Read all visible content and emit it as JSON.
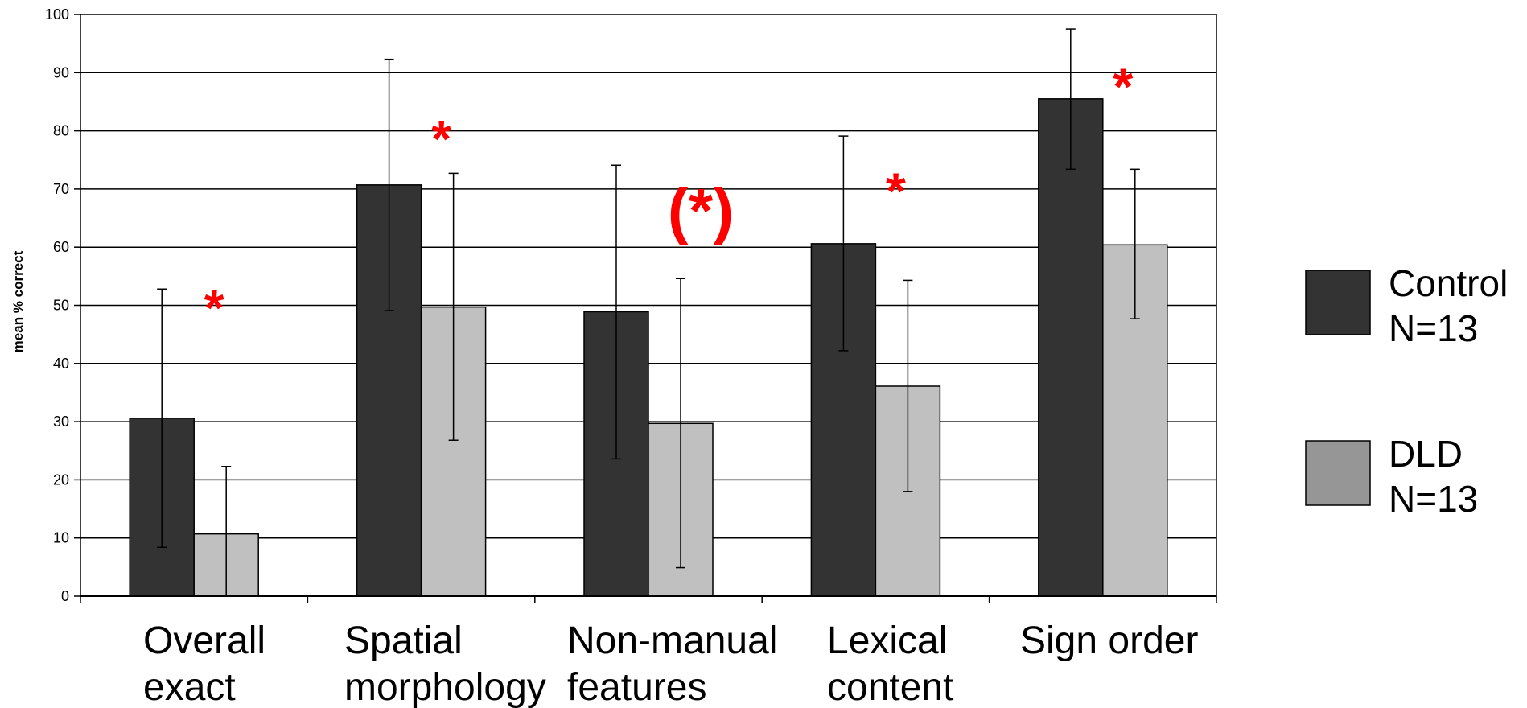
{
  "chart_data": {
    "type": "bar",
    "ylabel": "mean % correct",
    "xlabel": "",
    "ylim": [
      0,
      100
    ],
    "yticks": [
      "0",
      "10",
      "20",
      "30",
      "40",
      "50",
      "60",
      "70",
      "80",
      "90",
      "100"
    ],
    "grid": true,
    "legend_position": "right",
    "categories": [
      [
        "Overall",
        "exact"
      ],
      [
        "Spatial",
        "morphology"
      ],
      [
        "Non-manual",
        "features"
      ],
      [
        "Lexical",
        "content"
      ],
      [
        "Sign order"
      ]
    ],
    "series": [
      {
        "name": "Control N=13",
        "legend_lines": [
          "Control",
          "N=13"
        ],
        "color": "#333333",
        "values": [
          30.6,
          70.7,
          48.9,
          60.6,
          85.5
        ],
        "error_low": [
          8.4,
          49.1,
          23.6,
          42.2,
          73.4
        ],
        "error_high": [
          52.8,
          92.3,
          74.1,
          79.1,
          97.5
        ]
      },
      {
        "name": "DLD N=13",
        "legend_lines": [
          "DLD",
          "N=13"
        ],
        "color": "#c0c0c0",
        "legend_color": "#969696",
        "values": [
          10.7,
          49.7,
          29.7,
          36.1,
          60.4
        ],
        "error_low": [
          0,
          26.8,
          4.9,
          18.0,
          47.7
        ],
        "error_high": [
          22.3,
          72.7,
          54.6,
          54.3,
          73.4
        ]
      }
    ],
    "significance": [
      {
        "category_index": 0,
        "label": "*",
        "y": 51
      },
      {
        "category_index": 1,
        "label": "*",
        "y": 80
      },
      {
        "category_index": 2,
        "label": "(*)",
        "y": 67
      },
      {
        "category_index": 3,
        "label": "*",
        "y": 71
      },
      {
        "category_index": 4,
        "label": "*",
        "y": 89
      }
    ],
    "colors": {
      "significance": "#ff0000",
      "grid": "#000000",
      "axis": "#000000"
    }
  }
}
